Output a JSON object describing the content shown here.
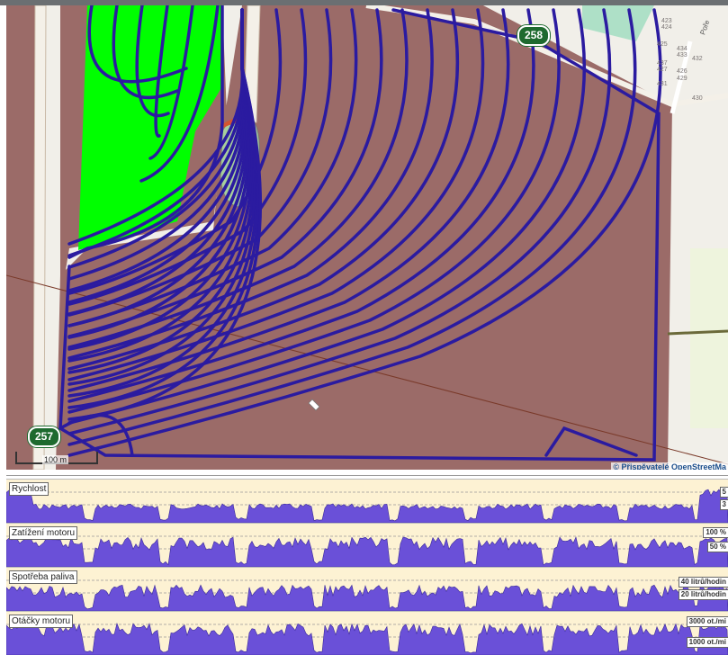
{
  "map": {
    "route_shields": [
      "258",
      "257"
    ],
    "address_numbers": [
      "423",
      "424",
      "425",
      "434",
      "433",
      "437",
      "427",
      "426",
      "431",
      "429",
      "432",
      "430"
    ],
    "street_label": "Poře",
    "scale_label": "100 m",
    "attribution": "© Přispěvatelé OpenStreetMa",
    "colors": {
      "field": "#9b6b68",
      "track": "#2b1ba0",
      "green_field": "#00ff00",
      "road": "#f4f0e8"
    }
  },
  "charts": [
    {
      "label": "Rychlost",
      "ticks": [
        "5",
        "3"
      ]
    },
    {
      "label": "Zatížení motoru",
      "ticks": [
        "100 %",
        "50 %"
      ]
    },
    {
      "label": "Spotřeba paliva",
      "ticks": [
        "40 litrů/hodin",
        "20 litrů/hodin"
      ]
    },
    {
      "label": "Otáčky motoru",
      "ticks": [
        "3000 ot./mi",
        "1000 ot./mi"
      ]
    }
  ],
  "chart_colors": {
    "fill": "#6a50d8",
    "stroke": "#3b2a9a",
    "background": "#fdf2d3"
  }
}
